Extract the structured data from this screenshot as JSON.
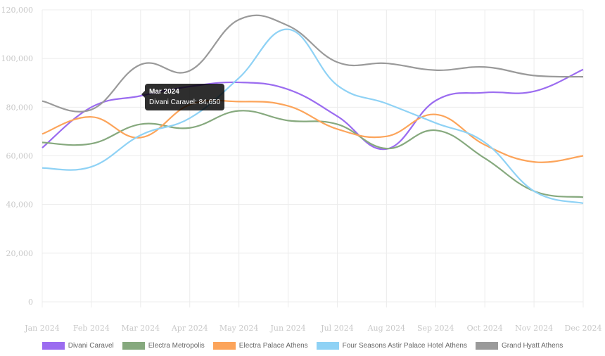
{
  "chart_data": {
    "type": "line",
    "categories": [
      "Jan 2024",
      "Feb 2024",
      "Mar 2024",
      "Apr 2024",
      "May 2024",
      "Jun 2024",
      "Jul 2024",
      "Aug 2024",
      "Sep 2024",
      "Oct 2024",
      "Nov 2024",
      "Dec 2024"
    ],
    "ylim": [
      0,
      120000
    ],
    "yticks": [
      0,
      20000,
      40000,
      60000,
      80000,
      100000,
      120000
    ],
    "ytick_labels": [
      "0",
      "20,000",
      "40,000",
      "60,000",
      "80,000",
      "100,000",
      "120,000"
    ],
    "grid": true,
    "legend_position": "bottom",
    "series": [
      {
        "name": "Divani Caravel",
        "color": "#9b6cf0",
        "values": [
          63300,
          80000,
          84650,
          88500,
          90200,
          87300,
          76300,
          62800,
          82700,
          86000,
          86500,
          95500
        ]
      },
      {
        "name": "Electra Metropolis",
        "color": "#86a97e",
        "values": [
          65500,
          65000,
          73000,
          71500,
          78500,
          74500,
          73000,
          63000,
          70500,
          59000,
          45500,
          43000
        ]
      },
      {
        "name": "Electra Palace Athens",
        "color": "#fca45a",
        "values": [
          69000,
          76000,
          67500,
          81000,
          82300,
          80500,
          71000,
          68000,
          77000,
          64500,
          57500,
          60000
        ]
      },
      {
        "name": "Four Seasons Astir Palace Hotel Athens",
        "color": "#8fd2f5",
        "values": [
          55000,
          55500,
          68500,
          75500,
          92000,
          112000,
          89000,
          81500,
          73500,
          65500,
          45500,
          40500
        ]
      },
      {
        "name": "Grand Hyatt Athens",
        "color": "#9a9a9a",
        "values": [
          82500,
          79000,
          97500,
          95000,
          116000,
          113500,
          98500,
          98000,
          95200,
          96500,
          93000,
          92500
        ]
      }
    ],
    "tooltip": {
      "title": "Mar 2024",
      "label": "Divani Caravel: 84,650"
    }
  }
}
